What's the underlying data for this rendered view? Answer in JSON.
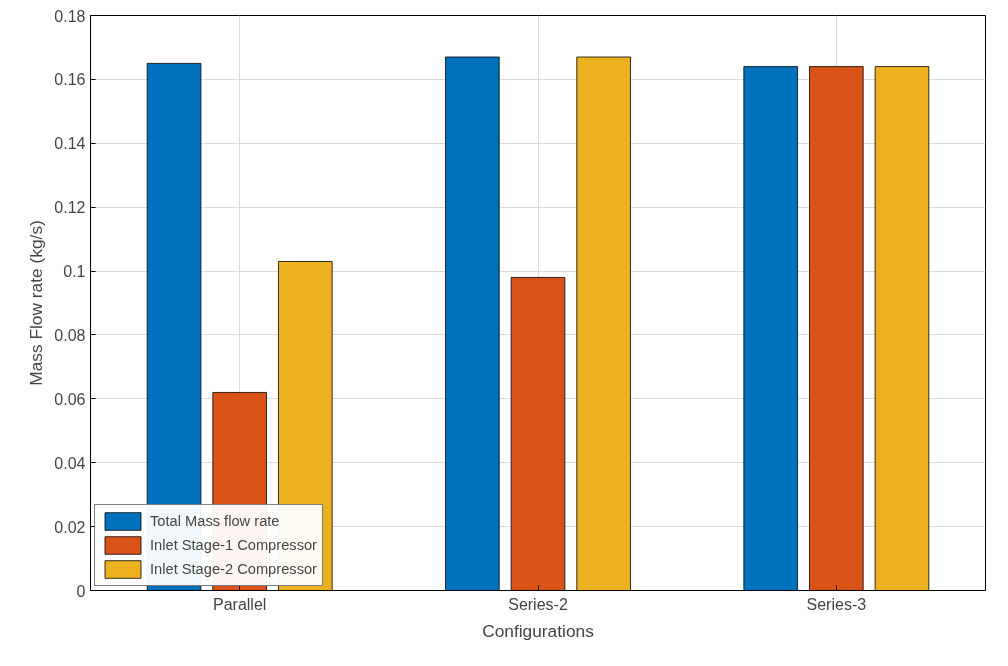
{
  "chart_data": {
    "type": "bar",
    "xlabel": "Configurations",
    "ylabel": "Mass Flow rate (kg/s)",
    "categories": [
      "Parallel",
      "Series-2",
      "Series-3"
    ],
    "series": [
      {
        "name": "Total Mass flow rate",
        "color": "#0072bd",
        "values": [
          0.165,
          0.167,
          0.164
        ]
      },
      {
        "name": "Inlet Stage-1 Compressor",
        "color": "#d95319",
        "values": [
          0.062,
          0.098,
          0.164
        ]
      },
      {
        "name": "Inlet Stage-2 Compressor",
        "color": "#edb120",
        "values": [
          0.103,
          0.167,
          0.164
        ]
      }
    ],
    "ylim": [
      0,
      0.18
    ],
    "yticks": [
      0,
      0.02,
      0.04,
      0.06,
      0.08,
      0.1,
      0.12,
      0.14,
      0.16,
      0.18
    ],
    "grid": true,
    "legend": "bottom left"
  }
}
